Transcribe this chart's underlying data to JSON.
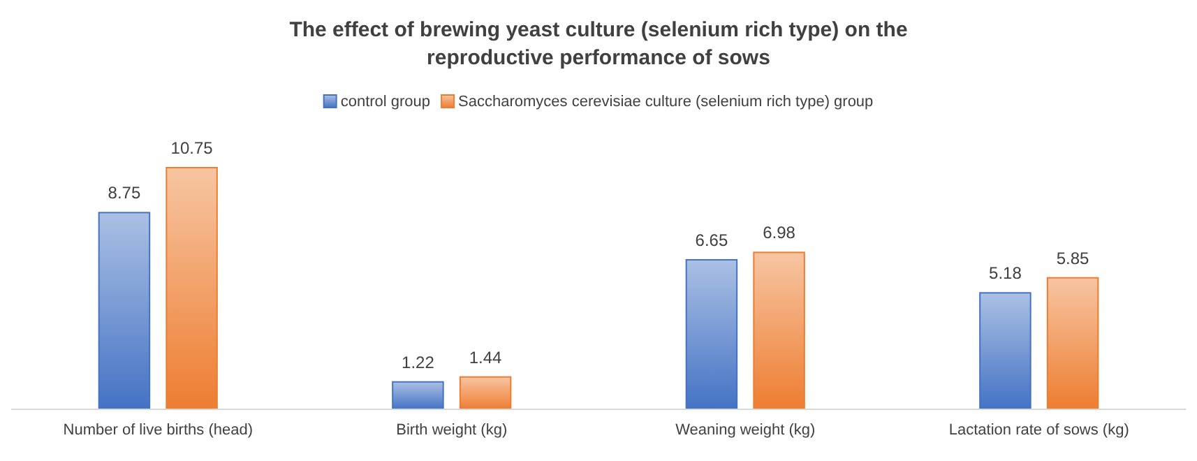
{
  "chart_data": {
    "type": "bar",
    "title": "The effect of brewing yeast culture (selenium rich type) on the reproductive performance of sows",
    "categories": [
      "Number of live births (head)",
      "Birth weight (kg)",
      "Weaning weight (kg)",
      "Lactation rate of sows (kg)"
    ],
    "series": [
      {
        "name": "control group",
        "color": "#4472c4",
        "values": [
          8.75,
          1.22,
          6.65,
          5.18
        ]
      },
      {
        "name": "Saccharomyces cerevisiae culture (selenium rich type) group",
        "color": "#ed7d31",
        "values": [
          10.75,
          1.44,
          6.98,
          5.85
        ]
      }
    ],
    "data_labels": true,
    "legend": "top",
    "tick_labels": "x"
  }
}
